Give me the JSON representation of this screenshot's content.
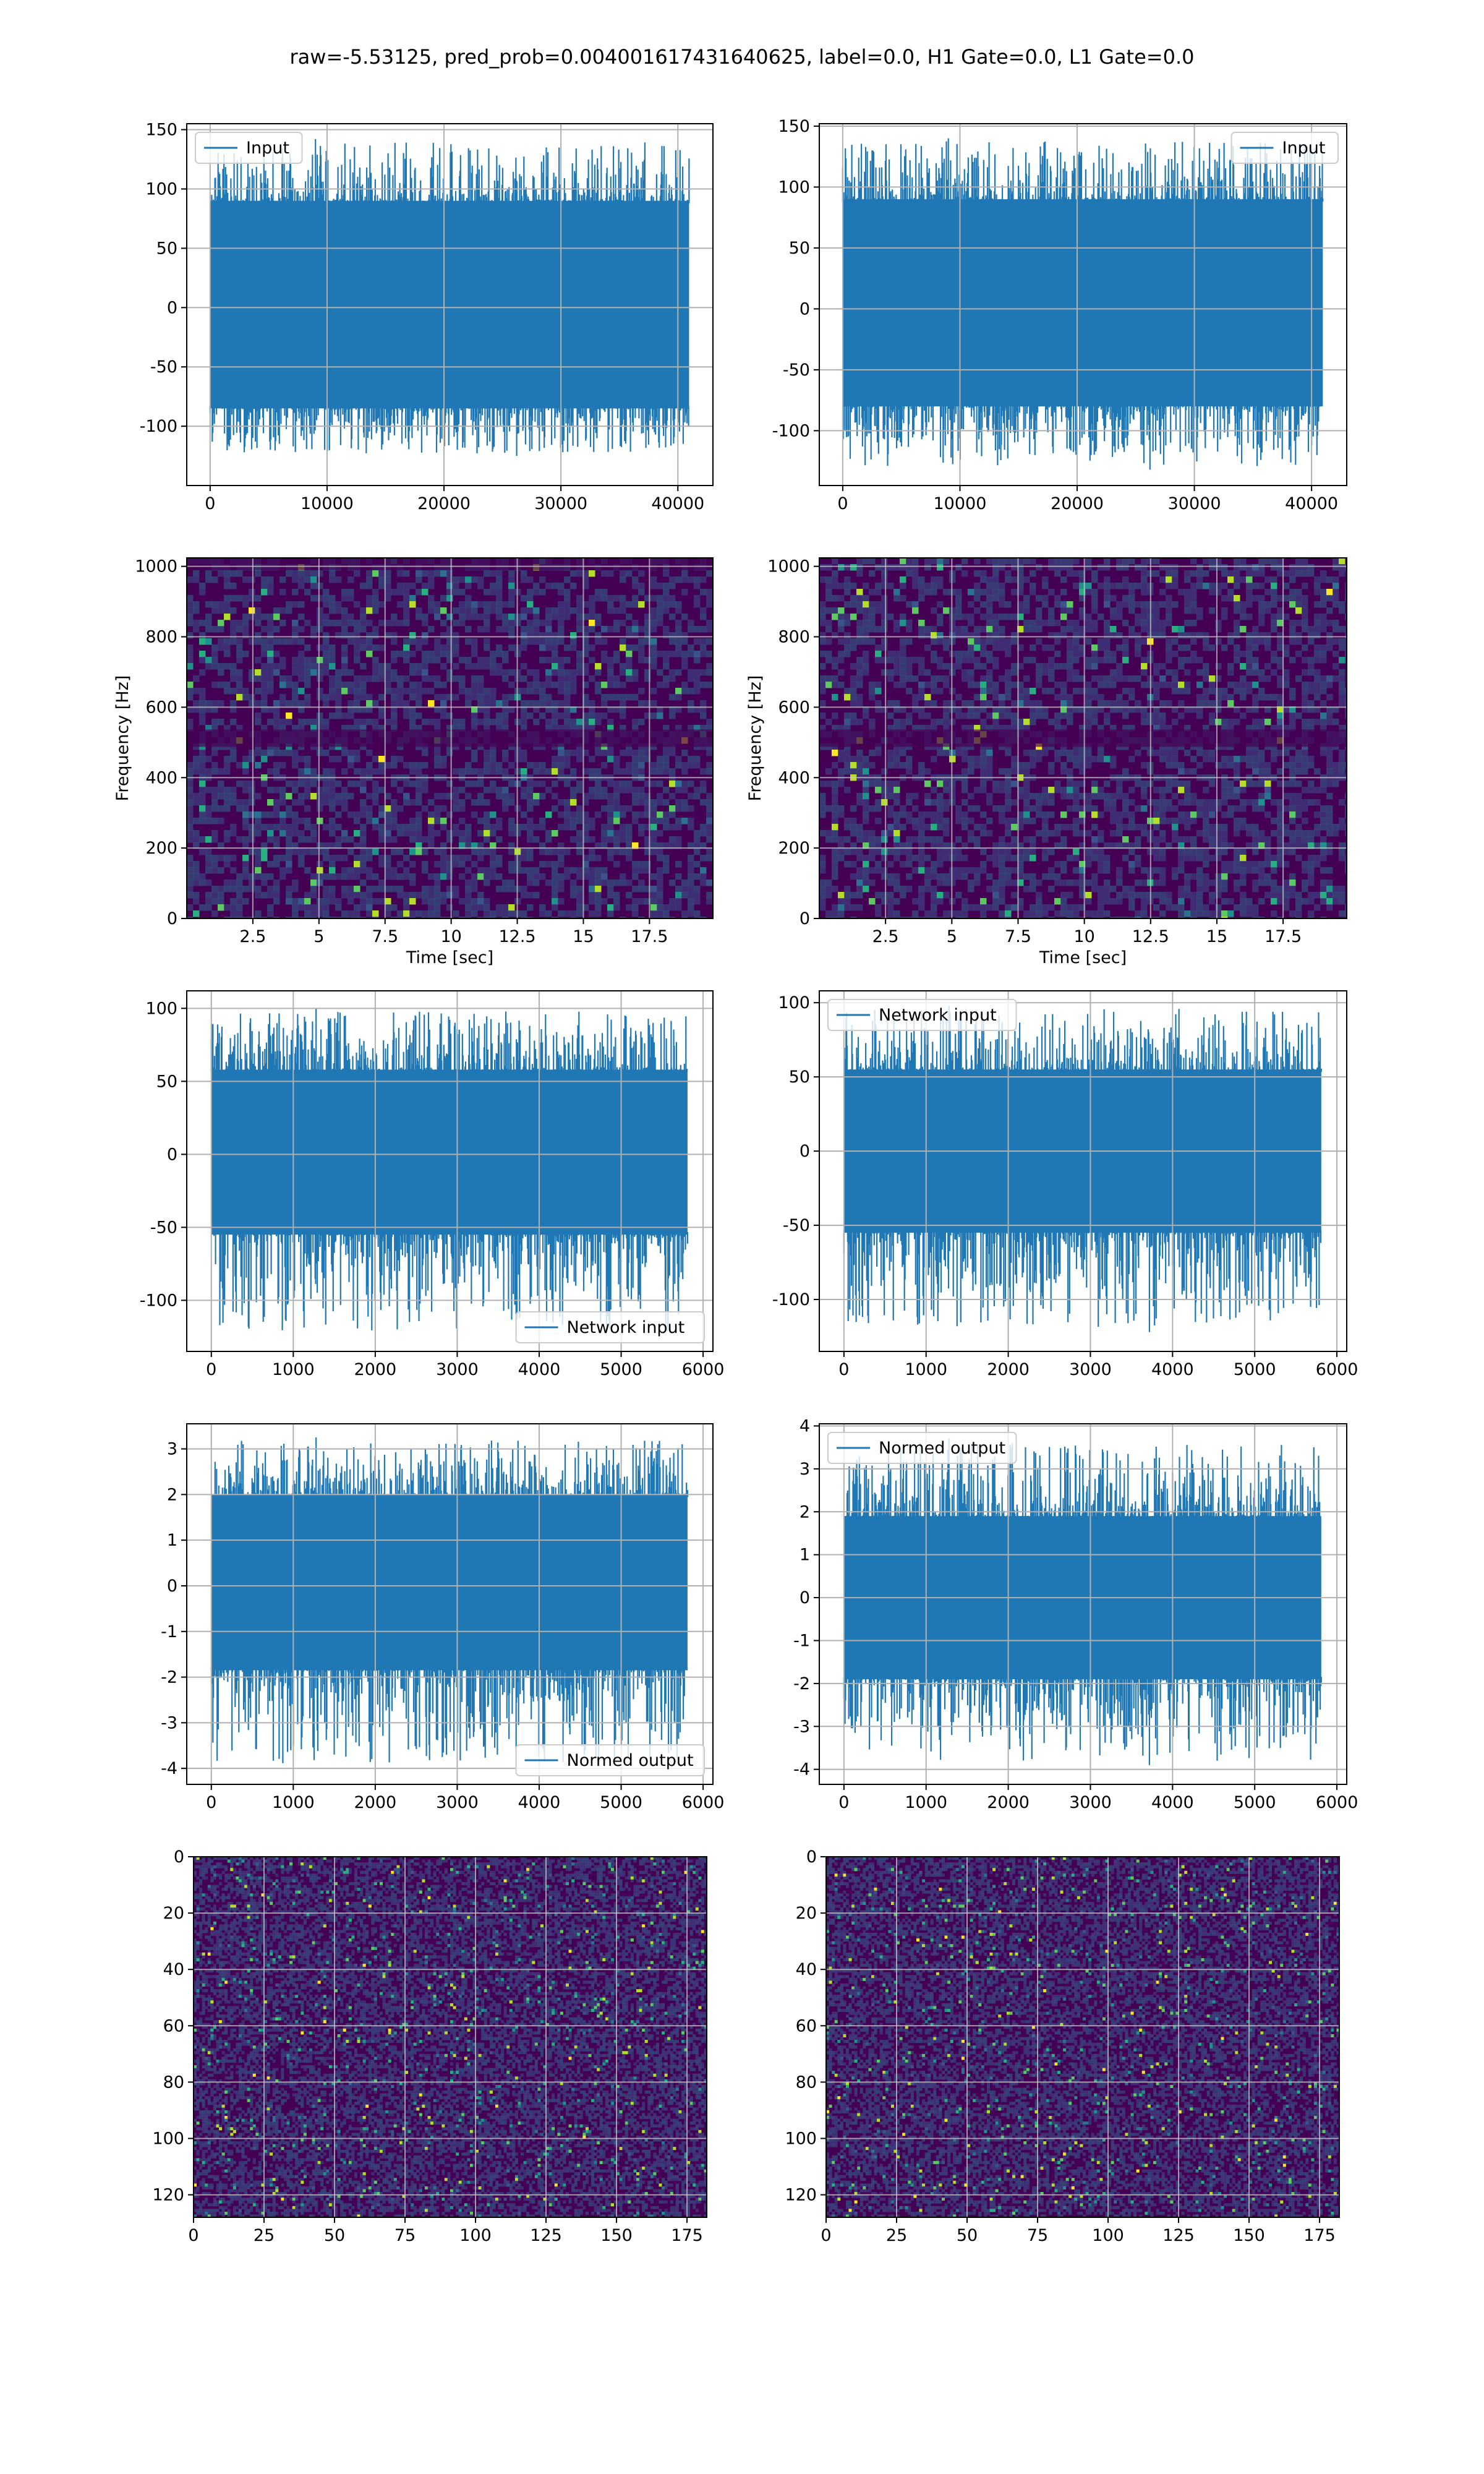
{
  "figure": {
    "title": "raw=-5.53125, pred_prob=0.004001617431640625, label=0.0, H1 Gate=0.0, L1 Gate=0.0"
  },
  "colors": {
    "line": "#1f77b4",
    "grid": "#b0b0b0",
    "viridis_low": "#440154",
    "viridis_mid": "#21918c",
    "viridis_high": "#fde725"
  },
  "chart_data": [
    {
      "id": "r0c0",
      "type": "line",
      "row": 0,
      "col": 0,
      "title": "",
      "xlabel": "",
      "ylabel": "",
      "xlim": [
        -2000,
        43000
      ],
      "ylim": [
        -150,
        155
      ],
      "xticks": [
        0,
        10000,
        20000,
        30000,
        40000
      ],
      "yticks": [
        -100,
        -50,
        0,
        50,
        100,
        150
      ],
      "grid": true,
      "legend": "upper-left",
      "series": [
        {
          "name": "Input",
          "x_range": [
            0,
            40960
          ],
          "envelope": [
            -85,
            90
          ],
          "max": 142,
          "min": -125
        }
      ]
    },
    {
      "id": "r0c1",
      "type": "line",
      "row": 0,
      "col": 1,
      "title": "",
      "xlabel": "",
      "ylabel": "",
      "xlim": [
        -2000,
        43000
      ],
      "ylim": [
        -145,
        152
      ],
      "xticks": [
        0,
        10000,
        20000,
        30000,
        40000
      ],
      "yticks": [
        -100,
        -50,
        0,
        50,
        100,
        150
      ],
      "grid": true,
      "legend": "upper-right",
      "series": [
        {
          "name": "Input",
          "x_range": [
            0,
            40960
          ],
          "envelope": [
            -80,
            90
          ],
          "max": 140,
          "min": -132
        }
      ]
    },
    {
      "id": "r1c0",
      "type": "heatmap",
      "row": 1,
      "col": 0,
      "title": "",
      "xlabel": "Time [sec]",
      "ylabel": "Frequency [Hz]",
      "xlim": [
        0,
        19.9
      ],
      "ylim": [
        0,
        1024
      ],
      "xticks": [
        2.5,
        5.0,
        7.5,
        10.0,
        12.5,
        15.0,
        17.5
      ],
      "yticks": [
        0,
        200,
        400,
        600,
        800,
        1000
      ],
      "grid": true,
      "colormap": "viridis",
      "seed": 11,
      "band_rows": [
        0.5,
        0.99
      ]
    },
    {
      "id": "r1c1",
      "type": "heatmap",
      "row": 1,
      "col": 1,
      "title": "",
      "xlabel": "Time [sec]",
      "ylabel": "Frequency [Hz]",
      "xlim": [
        0,
        19.9
      ],
      "ylim": [
        0,
        1024
      ],
      "xticks": [
        2.5,
        5.0,
        7.5,
        10.0,
        12.5,
        15.0,
        17.5
      ],
      "yticks": [
        0,
        200,
        400,
        600,
        800,
        1000
      ],
      "grid": true,
      "colormap": "viridis",
      "seed": 23,
      "band_rows": [
        0.5
      ]
    },
    {
      "id": "r2c0",
      "type": "line",
      "row": 2,
      "col": 0,
      "title": "",
      "xlabel": "",
      "ylabel": "",
      "xlim": [
        -300,
        6120
      ],
      "ylim": [
        -135,
        112
      ],
      "xticks": [
        0,
        1000,
        2000,
        3000,
        4000,
        5000,
        6000
      ],
      "yticks": [
        -100,
        -50,
        0,
        50,
        100
      ],
      "grid": true,
      "legend": "lower-right",
      "series": [
        {
          "name": "Network input",
          "x_range": [
            0,
            5810
          ],
          "envelope": [
            -55,
            58
          ],
          "max": 100,
          "min": -125
        }
      ]
    },
    {
      "id": "r2c1",
      "type": "line",
      "row": 2,
      "col": 1,
      "title": "",
      "xlabel": "",
      "ylabel": "",
      "xlim": [
        -300,
        6120
      ],
      "ylim": [
        -135,
        108
      ],
      "xticks": [
        0,
        1000,
        2000,
        3000,
        4000,
        5000,
        6000
      ],
      "yticks": [
        -100,
        -50,
        0,
        50,
        100
      ],
      "grid": true,
      "legend": "upper-left",
      "series": [
        {
          "name": "Network input",
          "x_range": [
            0,
            5810
          ],
          "envelope": [
            -55,
            55
          ],
          "max": 98,
          "min": -122
        }
      ]
    },
    {
      "id": "r3c0",
      "type": "line",
      "row": 3,
      "col": 0,
      "title": "",
      "xlabel": "",
      "ylabel": "",
      "xlim": [
        -300,
        6120
      ],
      "ylim": [
        -4.35,
        3.55
      ],
      "xticks": [
        0,
        1000,
        2000,
        3000,
        4000,
        5000,
        6000
      ],
      "yticks": [
        -4,
        -3,
        -2,
        -1,
        0,
        1,
        2,
        3
      ],
      "grid": true,
      "legend": "lower-right",
      "series": [
        {
          "name": "Normed output",
          "x_range": [
            0,
            5810
          ],
          "envelope": [
            -1.85,
            2.0
          ],
          "max": 3.25,
          "min": -4.0
        }
      ]
    },
    {
      "id": "r3c1",
      "type": "line",
      "row": 3,
      "col": 1,
      "title": "",
      "xlabel": "",
      "ylabel": "",
      "xlim": [
        -300,
        6120
      ],
      "ylim": [
        -4.35,
        4.05
      ],
      "xticks": [
        0,
        1000,
        2000,
        3000,
        4000,
        5000,
        6000
      ],
      "yticks": [
        -4,
        -3,
        -2,
        -1,
        0,
        1,
        2,
        3,
        4
      ],
      "grid": true,
      "legend": "upper-left",
      "series": [
        {
          "name": "Normed output",
          "x_range": [
            0,
            5810
          ],
          "envelope": [
            -1.9,
            1.9
          ],
          "max": 3.7,
          "min": -3.9
        }
      ]
    },
    {
      "id": "r4c0",
      "type": "heatmap",
      "row": 4,
      "col": 0,
      "title": "",
      "xlabel": "",
      "ylabel": "",
      "xlim": [
        0,
        182
      ],
      "ylim": [
        128,
        0
      ],
      "y_inverted": true,
      "xticks": [
        0,
        25,
        50,
        75,
        100,
        125,
        150,
        175
      ],
      "yticks": [
        0,
        20,
        40,
        60,
        80,
        100,
        120
      ],
      "grid": true,
      "colormap": "viridis",
      "seed": 37,
      "band_rows": []
    },
    {
      "id": "r4c1",
      "type": "heatmap",
      "row": 4,
      "col": 1,
      "title": "",
      "xlabel": "",
      "ylabel": "",
      "xlim": [
        0,
        182
      ],
      "ylim": [
        128,
        0
      ],
      "y_inverted": true,
      "xticks": [
        0,
        25,
        50,
        75,
        100,
        125,
        150,
        175
      ],
      "yticks": [
        0,
        20,
        40,
        60,
        80,
        100,
        120
      ],
      "grid": true,
      "colormap": "viridis",
      "seed": 53,
      "band_rows": []
    }
  ]
}
